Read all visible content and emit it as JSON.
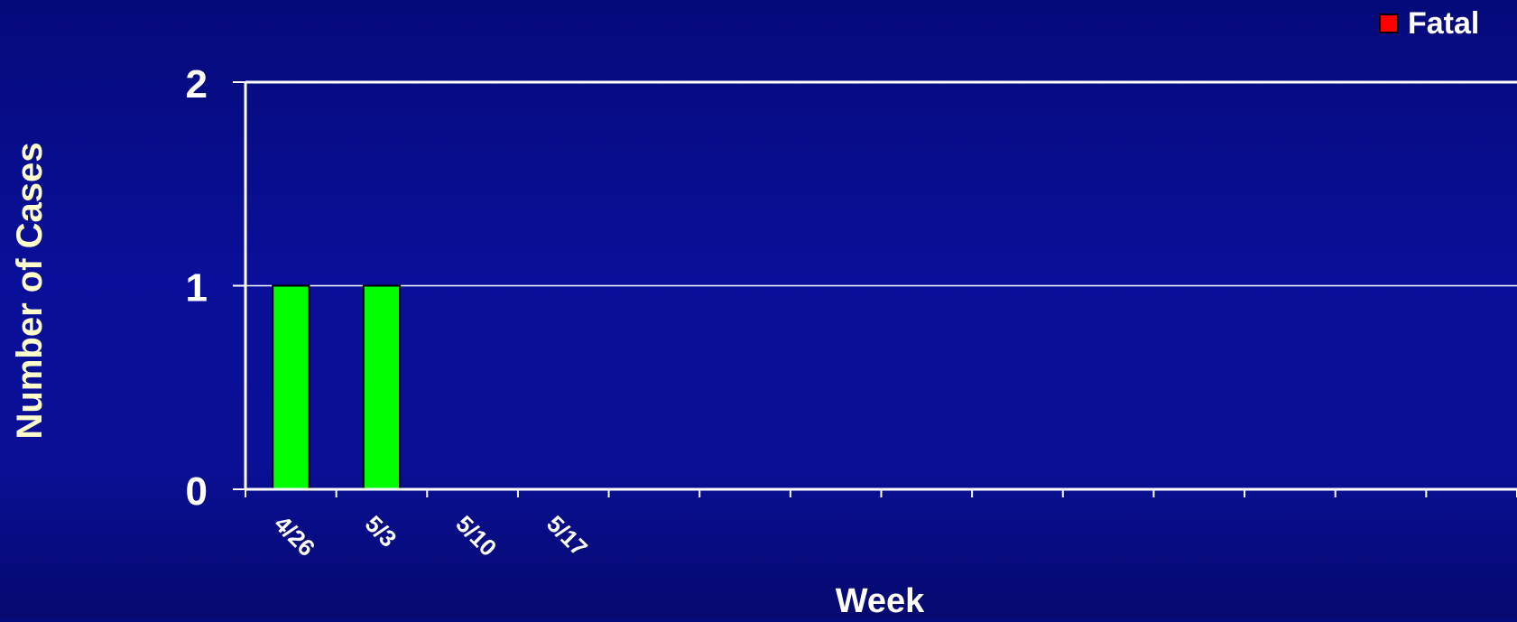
{
  "chart_data": {
    "type": "bar",
    "categories": [
      "4/26",
      "5/3",
      "5/10",
      "5/17",
      "",
      "",
      "",
      "",
      "",
      "",
      "",
      "",
      "",
      ""
    ],
    "series": [
      {
        "name": "",
        "color": "#00ff00",
        "values": [
          1,
          1,
          0,
          0,
          0,
          0,
          0,
          0,
          0,
          0,
          0,
          0,
          0,
          0
        ]
      }
    ],
    "legend": [
      {
        "label": "Fatal",
        "color": "#ff0000"
      }
    ],
    "xlabel": "Week",
    "ylabel": "Number of Cases",
    "ylim": [
      0,
      2
    ],
    "yticks": [
      0,
      1,
      2
    ],
    "grid": true,
    "legend_position": "top-right"
  },
  "colors": {
    "axis": "#ffffff",
    "grid": "#ffffff",
    "tick_label": "#ffffff",
    "axis_title": "#ffffcc",
    "bar_border": "#000000"
  }
}
